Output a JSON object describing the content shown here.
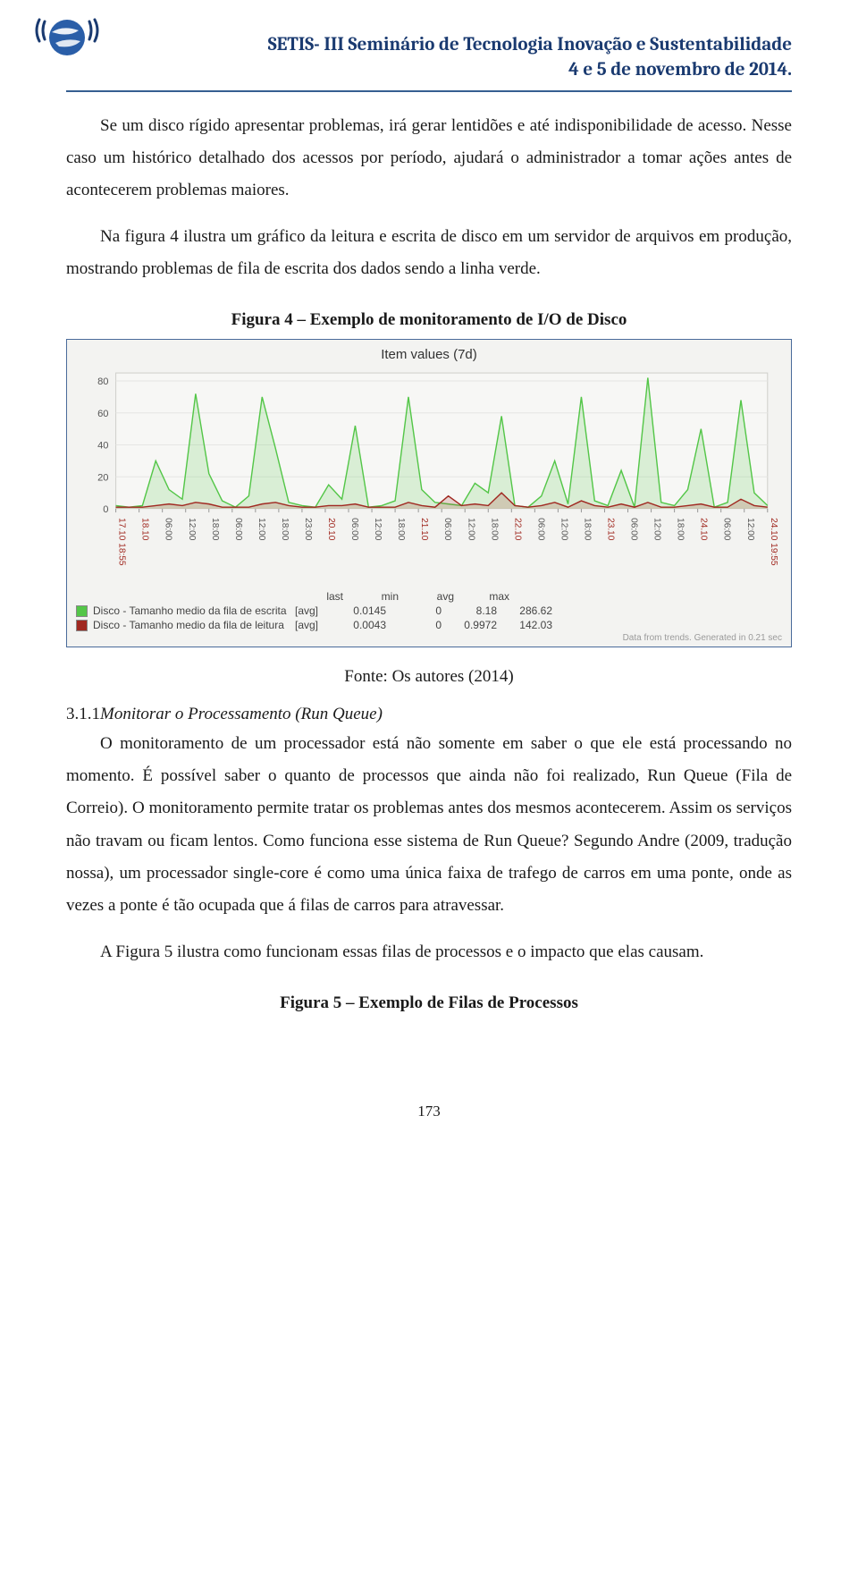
{
  "header": {
    "line1": "SETIS- III Seminário de Tecnologia Inovação e Sustentabilidade",
    "line2": "4 e 5 de novembro de 2014.",
    "accent_color": "#1a3a70",
    "rule_color": "#365f91"
  },
  "logo": {
    "globe_fill": "#2a5ea8",
    "wave_stroke": "#1a3a70"
  },
  "para1": "Se um disco rígido apresentar problemas, irá gerar lentidões e até indisponibilidade de acesso. Nesse caso um histórico detalhado dos acessos por período, ajudará o administrador a tomar ações antes de acontecerem problemas maiores.",
  "para2": "Na figura 4 ilustra um gráfico da leitura e escrita de disco em um servidor de arquivos em produção, mostrando problemas de fila de escrita dos dados sendo a linha verde.",
  "figure4": {
    "title": "Figura 4 – Exemplo de monitoramento de I/O de Disco",
    "chart_title": "Item values (7d)",
    "source": "Fonte: Os autores  (2014)",
    "border_color": "#4a6b9a",
    "bg": "#f3f3f1",
    "plot_bg": "#f7f7f5",
    "grid_color": "#e6e6e4",
    "axis_color": "#cfcfcb",
    "ylim": [
      0,
      85
    ],
    "yticks": [
      0,
      20,
      40,
      60,
      80
    ],
    "series_escrita": {
      "name": "Disco - Tamanho medio da fila de escrita",
      "agg": "[avg]",
      "color": "#54c648",
      "last": "0.0145",
      "min": "0",
      "avg": "8.18",
      "max": "286.62",
      "values": [
        2,
        1,
        2,
        30,
        12,
        6,
        72,
        22,
        5,
        1,
        8,
        70,
        38,
        4,
        2,
        1,
        15,
        6,
        52,
        1,
        2,
        5,
        70,
        12,
        4,
        3,
        2,
        16,
        10,
        58,
        2,
        1,
        8,
        30,
        3,
        70,
        5,
        2,
        24,
        1,
        82,
        4,
        2,
        12,
        50,
        1,
        4,
        68,
        10,
        2
      ]
    },
    "series_leitura": {
      "name": "Disco - Tamanho medio da fila de leitura",
      "agg": "[avg]",
      "color": "#a02820",
      "last": "0.0043",
      "min": "0",
      "avg": "0.9972",
      "max": "142.03",
      "values": [
        1,
        1,
        1,
        2,
        3,
        2,
        4,
        3,
        1,
        1,
        1,
        3,
        4,
        2,
        1,
        1,
        2,
        2,
        3,
        1,
        1,
        1,
        4,
        2,
        1,
        8,
        2,
        3,
        2,
        10,
        2,
        1,
        2,
        4,
        1,
        5,
        2,
        1,
        3,
        1,
        4,
        1,
        1,
        2,
        3,
        1,
        1,
        6,
        2,
        1
      ]
    },
    "xticks": [
      {
        "label": "17.10 18:55",
        "major": true
      },
      {
        "label": "18.10",
        "major": true
      },
      {
        "label": "06:00",
        "major": false
      },
      {
        "label": "12:00",
        "major": false
      },
      {
        "label": "18:00",
        "major": false
      },
      {
        "label": "06:00",
        "major": false
      },
      {
        "label": "12:00",
        "major": false
      },
      {
        "label": "18:00",
        "major": false
      },
      {
        "label": "23:00",
        "major": false
      },
      {
        "label": "20.10",
        "major": true
      },
      {
        "label": "06:00",
        "major": false
      },
      {
        "label": "12:00",
        "major": false
      },
      {
        "label": "18:00",
        "major": false
      },
      {
        "label": "21.10",
        "major": true
      },
      {
        "label": "06:00",
        "major": false
      },
      {
        "label": "12:00",
        "major": false
      },
      {
        "label": "18:00",
        "major": false
      },
      {
        "label": "22.10",
        "major": true
      },
      {
        "label": "06:00",
        "major": false
      },
      {
        "label": "12:00",
        "major": false
      },
      {
        "label": "18:00",
        "major": false
      },
      {
        "label": "23.10",
        "major": true
      },
      {
        "label": "06:00",
        "major": false
      },
      {
        "label": "12:00",
        "major": false
      },
      {
        "label": "18:00",
        "major": false
      },
      {
        "label": "24.10",
        "major": true
      },
      {
        "label": "06:00",
        "major": false
      },
      {
        "label": "12:00",
        "major": false
      },
      {
        "label": "24.10 19:55",
        "major": true
      }
    ],
    "legend_cols": [
      "last",
      "min",
      "avg",
      "max"
    ],
    "footer_note": "Data from trends. Generated in 0.21 sec"
  },
  "section_3_1_1": {
    "heading_num": "3.1.1",
    "heading": "Monitorar o Processamento (Run Queue)",
    "para1": "O monitoramento de um processador está não somente em saber o que ele está processando no momento. É possível saber o quanto de processos que ainda não foi realizado, Run Queue (Fila de Correio). O monitoramento permite tratar os problemas antes dos mesmos acontecerem. Assim os serviços não travam ou ficam lentos. Como funciona esse sistema de Run Queue? Segundo Andre (2009, tradução nossa), um processador single-core é como uma única faixa de trafego de carros em uma ponte, onde as vezes a ponte é tão ocupada que á filas de carros para atravessar.",
    "para2": "A Figura 5 ilustra como funcionam essas filas de processos e o impacto que elas causam."
  },
  "figure5": {
    "title": "Figura 5 – Exemplo de Filas de Processos"
  },
  "page_number": "173"
}
